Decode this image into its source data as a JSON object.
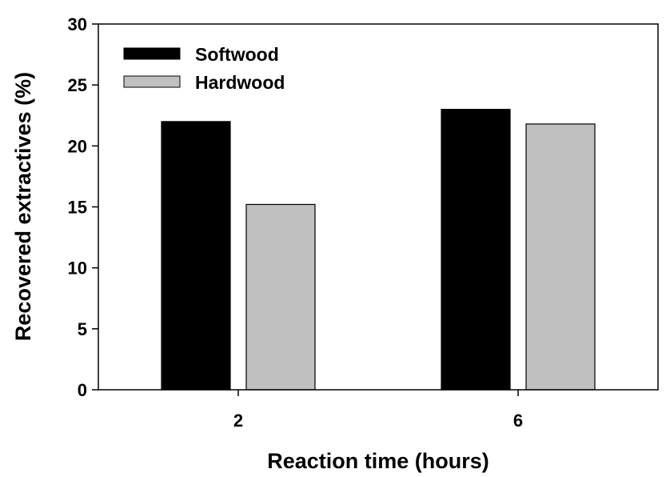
{
  "chart_data": {
    "type": "bar",
    "title": "",
    "xlabel": "Reaction time (hours)",
    "ylabel": "Recovered extractives (%)",
    "categories": [
      "2",
      "6"
    ],
    "ylim": [
      0,
      30
    ],
    "yticks": [
      "0",
      "5",
      "10",
      "15",
      "20",
      "25",
      "30"
    ],
    "grid": false,
    "legend_position": "top-left",
    "series": [
      {
        "name": "Softwood",
        "color": "#000000",
        "values": [
          22.0,
          23.0
        ]
      },
      {
        "name": "Hardwood",
        "color": "#c0c0c0",
        "values": [
          15.2,
          21.8
        ]
      }
    ]
  }
}
